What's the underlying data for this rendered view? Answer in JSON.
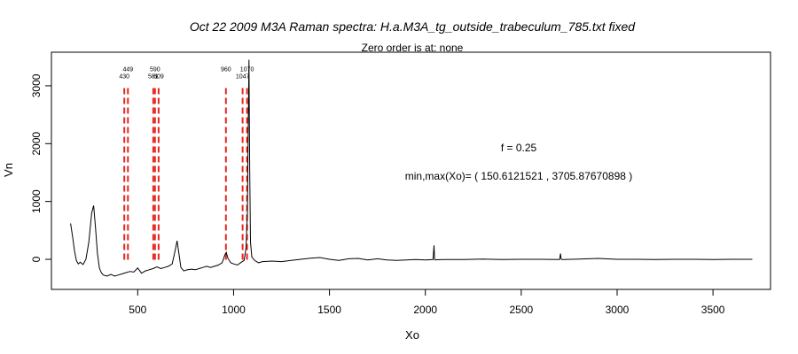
{
  "chart_data": {
    "type": "line",
    "title": "Oct 22 2009 M3A Raman spectra: H.a.M3A_tg_outside_trabeculum_785.txt fixed",
    "subtitle": "Zero order is at:  none",
    "xlabel": "Xo",
    "ylabel": "Vn",
    "xlim": [
      50,
      3800
    ],
    "ylim": [
      -520,
      3580
    ],
    "xticks": [
      500,
      1000,
      1500,
      2000,
      2500,
      3000,
      3500
    ],
    "yticks": [
      0,
      1000,
      2000,
      3000
    ],
    "grid": false,
    "line_color": "#000000",
    "peak_line_color": "#e8261f",
    "series": [
      {
        "values_x": [
          150,
          160,
          170,
          180,
          190,
          200,
          215,
          230,
          245,
          260,
          270,
          280,
          290,
          300,
          310,
          320,
          340,
          360,
          380,
          400,
          420,
          440,
          460,
          480,
          500,
          520,
          540,
          560,
          580,
          600,
          620,
          640,
          660,
          680,
          695,
          705,
          715,
          725,
          740,
          760,
          780,
          800,
          820,
          840,
          860,
          880,
          900,
          920,
          940,
          955,
          962,
          970,
          985,
          1000,
          1020,
          1040,
          1055,
          1065,
          1072,
          1076,
          1080,
          1084,
          1088,
          1095,
          1110,
          1130,
          1150,
          1200,
          1250,
          1300,
          1350,
          1400,
          1450,
          1500,
          1550,
          1600,
          1650,
          1700,
          1750,
          1800,
          1850,
          1900,
          1950,
          2000,
          2040,
          2045,
          2048,
          2052,
          2060,
          2100,
          2200,
          2300,
          2400,
          2500,
          2600,
          2700,
          2705,
          2708,
          2712,
          2720,
          2800,
          2900,
          3000,
          3100,
          3200,
          3300,
          3400,
          3500,
          3600,
          3705
        ],
        "values_y": [
          620,
          400,
          150,
          -20,
          -80,
          -50,
          -90,
          0,
          300,
          800,
          930,
          550,
          100,
          -150,
          -230,
          -270,
          -290,
          -260,
          -290,
          -270,
          -250,
          -230,
          -210,
          -220,
          -150,
          -240,
          -200,
          -180,
          -160,
          -130,
          -160,
          -140,
          -120,
          -80,
          150,
          320,
          100,
          -140,
          -200,
          -180,
          -170,
          -180,
          -160,
          -140,
          -120,
          -140,
          -120,
          -100,
          -60,
          80,
          120,
          20,
          -60,
          -80,
          -100,
          -50,
          -20,
          200,
          800,
          2200,
          3450,
          1600,
          300,
          40,
          -20,
          -60,
          -40,
          -30,
          -40,
          -20,
          0,
          20,
          30,
          0,
          -20,
          10,
          15,
          -10,
          10,
          -10,
          -20,
          -10,
          -5,
          -10,
          -5,
          240,
          0,
          -10,
          -8,
          -5,
          -5,
          5,
          -5,
          0,
          0,
          -5,
          100,
          10,
          -5,
          -5,
          5,
          15,
          0,
          0,
          -5,
          0,
          0,
          -5,
          0,
          0
        ]
      }
    ],
    "peak_lines": [
      {
        "x": 430,
        "label": "430"
      },
      {
        "x": 449,
        "label": "449"
      },
      {
        "x": 581,
        "label": "581"
      },
      {
        "x": 590,
        "label": "590"
      },
      {
        "x": 609,
        "label": "609"
      },
      {
        "x": 960,
        "label": "960"
      },
      {
        "x": 1047,
        "label": "1047"
      },
      {
        "x": 1070,
        "label": "1070"
      }
    ],
    "annotations": {
      "f_text": "f =  0.25",
      "minmax_text": "min,max(Xo)= ( 150.6121521 , 3705.87670898 )"
    }
  }
}
